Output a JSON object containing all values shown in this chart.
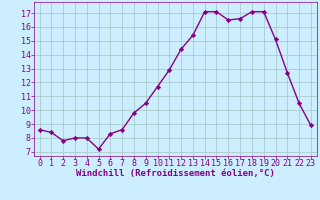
{
  "x": [
    0,
    1,
    2,
    3,
    4,
    5,
    6,
    7,
    8,
    9,
    10,
    11,
    12,
    13,
    14,
    15,
    16,
    17,
    18,
    19,
    20,
    21,
    22,
    23
  ],
  "y": [
    8.6,
    8.4,
    7.8,
    8.0,
    8.0,
    7.2,
    8.3,
    8.6,
    9.8,
    10.5,
    11.7,
    12.9,
    14.4,
    15.4,
    17.1,
    17.1,
    16.5,
    16.6,
    17.1,
    17.1,
    15.1,
    12.7,
    10.5,
    8.9
  ],
  "line_color": "#880088",
  "marker": "D",
  "marker_size": 2.2,
  "line_width": 1.0,
  "bg_color": "#cceeff",
  "grid_color": "#aacccc",
  "xlabel": "Windchill (Refroidissement éolien,°C)",
  "xlabel_fontsize": 6.5,
  "tick_fontsize": 6,
  "yticks": [
    7,
    8,
    9,
    10,
    11,
    12,
    13,
    14,
    15,
    16,
    17
  ],
  "ylim": [
    6.7,
    17.8
  ],
  "xlim": [
    -0.5,
    23.5
  ]
}
